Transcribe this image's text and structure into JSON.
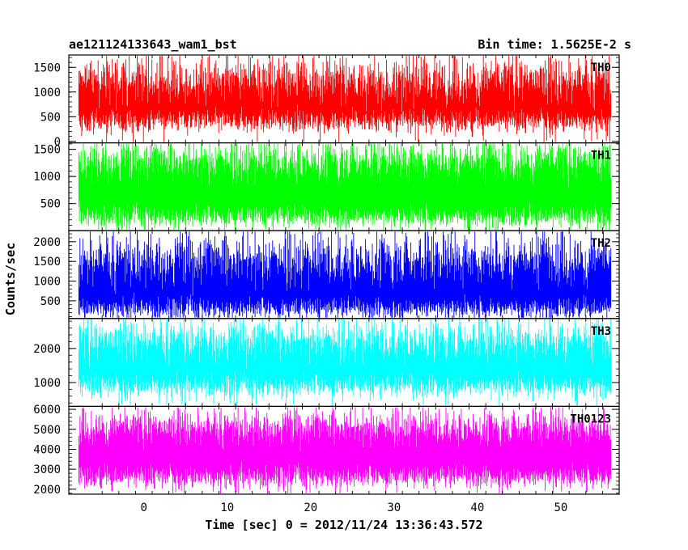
{
  "chart_data": {
    "type": "line",
    "title_left": "ae121124133643_wam1_bst",
    "title_right": "Bin time: 1.5625E-2 s",
    "xlabel": "Time [sec] 0 = 2012/11/24 13:36:43.572",
    "ylabel": "Counts/sec",
    "xlim": [
      -9,
      57
    ],
    "x_data_range": [
      -7.8,
      56
    ],
    "x_ticks": [
      0,
      10,
      20,
      30,
      40,
      50
    ],
    "x_tick_labels": [
      "0",
      "10",
      "20",
      "30",
      "40",
      "50"
    ],
    "panels": [
      {
        "name": "TH0",
        "color": "#ff0000",
        "ylim": [
          -30,
          1750
        ],
        "y_ticks": [
          0,
          500,
          1000,
          1500
        ],
        "y_tick_labels": [
          "0",
          "500",
          "1000",
          "1500"
        ],
        "baseline": 800,
        "low_mean": 400,
        "low_spread": 120,
        "high_mean": 1250,
        "high_spread": 250
      },
      {
        "name": "TH1",
        "color": "#00ff00",
        "ylim": [
          0,
          1620
        ],
        "y_ticks": [
          500,
          1000,
          1500
        ],
        "y_tick_labels": [
          "500",
          "1000",
          "1500"
        ],
        "baseline": 800,
        "low_mean": 250,
        "low_spread": 110,
        "high_mean": 1300,
        "high_spread": 200
      },
      {
        "name": "TH2",
        "color": "#0000ff",
        "ylim": [
          50,
          2280
        ],
        "y_ticks": [
          500,
          1000,
          1500,
          2000
        ],
        "y_tick_labels": [
          "500",
          "1000",
          "1500",
          "2000"
        ],
        "baseline": 1000,
        "low_mean": 300,
        "low_spread": 150,
        "high_mean": 1550,
        "high_spread": 350
      },
      {
        "name": "TH3",
        "color": "#00ffff",
        "ylim": [
          300,
          2880
        ],
        "y_ticks": [
          1000,
          2000
        ],
        "y_tick_labels": [
          "1000",
          "2000"
        ],
        "baseline": 1600,
        "low_mean": 900,
        "low_spread": 180,
        "high_mean": 2250,
        "high_spread": 320
      },
      {
        "name": "TH0123",
        "color": "#ff00ff",
        "ylim": [
          1750,
          6150
        ],
        "y_ticks": [
          2000,
          3000,
          4000,
          5000,
          6000
        ],
        "y_tick_labels": [
          "2000",
          "3000",
          "4000",
          "5000",
          "6000"
        ],
        "baseline": 4000,
        "low_mean": 2600,
        "low_spread": 300,
        "high_mean": 5100,
        "high_spread": 450
      }
    ]
  }
}
